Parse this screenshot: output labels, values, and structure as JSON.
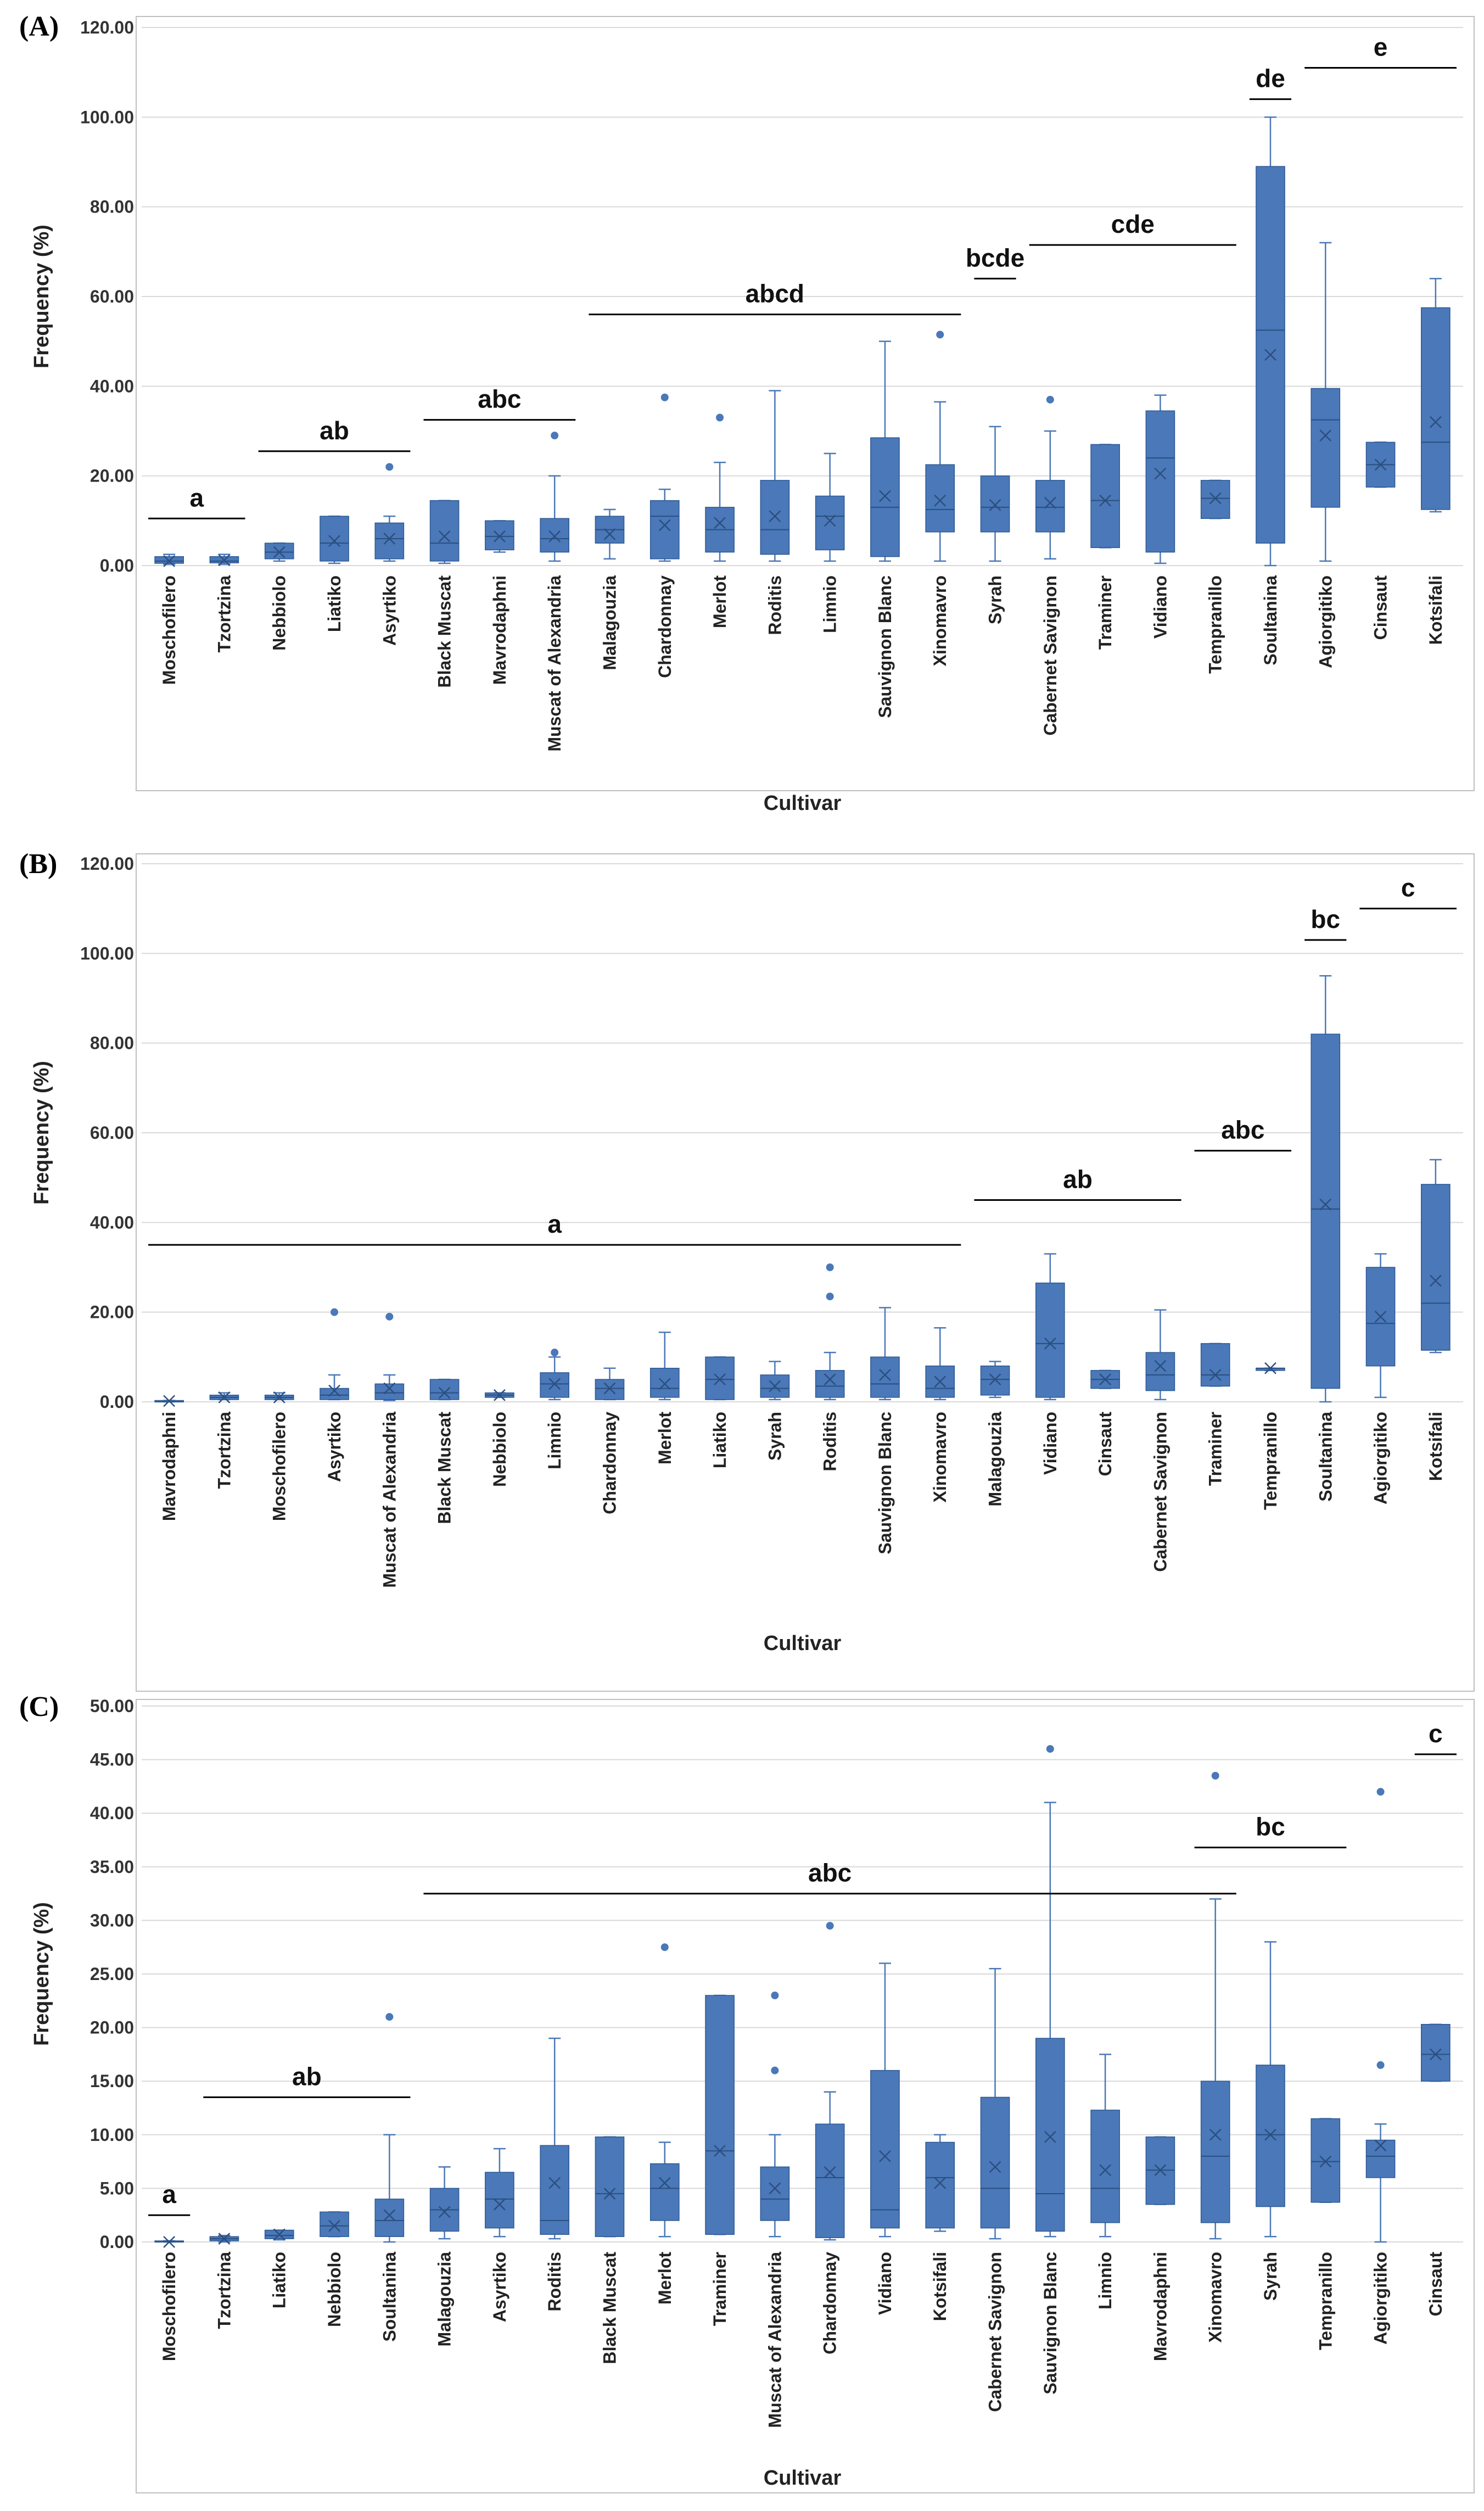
{
  "figure": {
    "colors": {
      "box_fill": "#4A78B8",
      "box_stroke": "#2E5A94",
      "grid": "#D9D9D9",
      "frame": "#BFBFBF",
      "line": "#000000"
    }
  },
  "chart_data": [
    {
      "panel": "(A)",
      "type": "box",
      "xlabel": "Cultivar",
      "ylabel": "Frequency (%)",
      "ylim": [
        0,
        120
      ],
      "yticks": [
        "0.00",
        "20.00",
        "40.00",
        "60.00",
        "80.00",
        "100.00",
        "120.00"
      ],
      "categories": [
        "Moschofilero",
        "Tzortzina",
        "Nebbiolo",
        "Liatiko",
        "Asyrtiko",
        "Black Muscat",
        "Mavrodaphni",
        "Muscat of Alexandria",
        "Malagouzia",
        "Chardonnay",
        "Merlot",
        "Roditis",
        "Limnio",
        "Sauvignon Blanc",
        "Xinomavro",
        "Syrah",
        "Cabernet Savignon",
        "Traminer",
        "Vidiano",
        "Tempranillo",
        "Soultanina",
        "Agiorgitiko",
        "Cinsaut",
        "Kotsifali"
      ],
      "boxes": [
        {
          "min": 0.3,
          "q1": 0.5,
          "median": 1,
          "q3": 2,
          "max": 2.5,
          "mean": 1,
          "outliers": []
        },
        {
          "min": 0.3,
          "q1": 0.6,
          "median": 1,
          "q3": 2,
          "max": 2.5,
          "mean": 1.2,
          "outliers": []
        },
        {
          "min": 1,
          "q1": 1.5,
          "median": 3,
          "q3": 5,
          "max": 5,
          "mean": 3,
          "outliers": []
        },
        {
          "min": 0.5,
          "q1": 1,
          "median": 5,
          "q3": 11,
          "max": 11,
          "mean": 5.5,
          "outliers": []
        },
        {
          "min": 1,
          "q1": 1.5,
          "median": 6,
          "q3": 9.5,
          "max": 11,
          "mean": 6,
          "outliers": [
            22
          ]
        },
        {
          "min": 0.5,
          "q1": 1,
          "median": 5,
          "q3": 14.5,
          "max": 14.5,
          "mean": 6.5,
          "outliers": []
        },
        {
          "min": 3,
          "q1": 3.5,
          "median": 6.5,
          "q3": 10,
          "max": 10,
          "mean": 6.5,
          "outliers": []
        },
        {
          "min": 1,
          "q1": 3,
          "median": 6,
          "q3": 10.5,
          "max": 20,
          "mean": 6.5,
          "outliers": [
            29
          ]
        },
        {
          "min": 1.5,
          "q1": 5,
          "median": 8,
          "q3": 11,
          "max": 12.5,
          "mean": 7,
          "outliers": []
        },
        {
          "min": 1,
          "q1": 1.5,
          "median": 11,
          "q3": 14.5,
          "max": 17,
          "mean": 9,
          "outliers": [
            37.5
          ]
        },
        {
          "min": 1,
          "q1": 3,
          "median": 8,
          "q3": 13,
          "max": 23,
          "mean": 9.5,
          "outliers": [
            33
          ]
        },
        {
          "min": 1,
          "q1": 2.5,
          "median": 8,
          "q3": 19,
          "max": 39,
          "mean": 11,
          "outliers": []
        },
        {
          "min": 1,
          "q1": 3.5,
          "median": 11,
          "q3": 15.5,
          "max": 25,
          "mean": 10,
          "outliers": []
        },
        {
          "min": 1,
          "q1": 2,
          "median": 13,
          "q3": 28.5,
          "max": 50,
          "mean": 15.5,
          "outliers": []
        },
        {
          "min": 1,
          "q1": 7.5,
          "median": 12.5,
          "q3": 22.5,
          "max": 36.5,
          "mean": 14.5,
          "outliers": [
            51.5
          ]
        },
        {
          "min": 1,
          "q1": 7.5,
          "median": 13,
          "q3": 20,
          "max": 31,
          "mean": 13.5,
          "outliers": []
        },
        {
          "min": 1.5,
          "q1": 7.5,
          "median": 13,
          "q3": 19,
          "max": 30,
          "mean": 14,
          "outliers": [
            37
          ]
        },
        {
          "min": 4,
          "q1": 4,
          "median": 14.5,
          "q3": 27,
          "max": 27,
          "mean": 14.5,
          "outliers": []
        },
        {
          "min": 0.5,
          "q1": 3,
          "median": 24,
          "q3": 34.5,
          "max": 38,
          "mean": 20.5,
          "outliers": []
        },
        {
          "min": 10.5,
          "q1": 10.5,
          "median": 15,
          "q3": 19,
          "max": 19,
          "mean": 15,
          "outliers": []
        },
        {
          "min": 0,
          "q1": 5,
          "median": 52.5,
          "q3": 89,
          "max": 100,
          "mean": 47,
          "outliers": []
        },
        {
          "min": 1,
          "q1": 13,
          "median": 32.5,
          "q3": 39.5,
          "max": 72,
          "mean": 29,
          "outliers": []
        },
        {
          "min": 17.5,
          "q1": 17.5,
          "median": 22.5,
          "q3": 27.5,
          "max": 27.5,
          "mean": 22.5,
          "outliers": []
        },
        {
          "min": 12,
          "q1": 12.5,
          "median": 27.5,
          "q3": 57.5,
          "max": 64,
          "mean": 32,
          "outliers": []
        }
      ],
      "sig_groups": [
        {
          "label": "a",
          "from": 0,
          "to": 1,
          "y": 10.5
        },
        {
          "label": "ab",
          "from": 2,
          "to": 4,
          "y": 25.5
        },
        {
          "label": "abc",
          "from": 5,
          "to": 7,
          "y": 32.5
        },
        {
          "label": "abcd",
          "from": 8,
          "to": 14,
          "y": 56
        },
        {
          "label": "bcde",
          "from": 15,
          "to": 15,
          "y": 64
        },
        {
          "label": "cde",
          "from": 16,
          "to": 19,
          "y": 71.5
        },
        {
          "label": "de",
          "from": 20,
          "to": 20,
          "y": 104
        },
        {
          "label": "e",
          "from": 21,
          "to": 23,
          "y": 111
        }
      ]
    },
    {
      "panel": "(B)",
      "type": "box",
      "xlabel": "Cultivar",
      "ylabel": "Frequency (%)",
      "ylim": [
        0,
        120
      ],
      "yticks": [
        "0.00",
        "20.00",
        "40.00",
        "60.00",
        "80.00",
        "100.00",
        "120.00"
      ],
      "categories": [
        "Mavrodaphni",
        "Tzortzina",
        "Moschofilero",
        "Asyrtiko",
        "Muscat of Alexandria",
        "Black Muscat",
        "Nebbiolo",
        "Limnio",
        "Chardonnay",
        "Merlot",
        "Liatiko",
        "Syrah",
        "Roditis",
        "Sauvignon Blanc",
        "Xinomavro",
        "Malagouzia",
        "Vidiano",
        "Cinsaut",
        "Cabernet Savignon",
        "Traminer",
        "Tempranillo",
        "Soultanina",
        "Agiorgitiko",
        "Kotsifali"
      ],
      "boxes": [
        {
          "min": 0,
          "q1": 0,
          "median": 0,
          "q3": 0.3,
          "max": 0.3,
          "mean": 0.2,
          "outliers": []
        },
        {
          "min": 0.5,
          "q1": 0.5,
          "median": 1,
          "q3": 1.5,
          "max": 2,
          "mean": 1,
          "outliers": []
        },
        {
          "min": 0.5,
          "q1": 0.5,
          "median": 1,
          "q3": 1.5,
          "max": 2,
          "mean": 1,
          "outliers": []
        },
        {
          "min": 0.5,
          "q1": 0.5,
          "median": 1.5,
          "q3": 3,
          "max": 6,
          "mean": 2.5,
          "outliers": [
            20
          ]
        },
        {
          "min": 0.3,
          "q1": 0.5,
          "median": 2,
          "q3": 4,
          "max": 6,
          "mean": 3,
          "outliers": [
            19
          ]
        },
        {
          "min": 0.5,
          "q1": 0.5,
          "median": 2,
          "q3": 5,
          "max": 5,
          "mean": 2,
          "outliers": []
        },
        {
          "min": 1,
          "q1": 1,
          "median": 1.5,
          "q3": 2,
          "max": 2,
          "mean": 1.5,
          "outliers": []
        },
        {
          "min": 0.5,
          "q1": 1,
          "median": 4,
          "q3": 6.5,
          "max": 10,
          "mean": 4,
          "outliers": [
            11
          ]
        },
        {
          "min": 0.5,
          "q1": 0.5,
          "median": 3,
          "q3": 5,
          "max": 7.5,
          "mean": 3,
          "outliers": []
        },
        {
          "min": 0.5,
          "q1": 1,
          "median": 3,
          "q3": 7.5,
          "max": 15.5,
          "mean": 4,
          "outliers": []
        },
        {
          "min": 0.5,
          "q1": 0.5,
          "median": 5,
          "q3": 10,
          "max": 10,
          "mean": 5,
          "outliers": []
        },
        {
          "min": 0.5,
          "q1": 1,
          "median": 3,
          "q3": 6,
          "max": 9,
          "mean": 3.5,
          "outliers": []
        },
        {
          "min": 0.5,
          "q1": 1,
          "median": 3.5,
          "q3": 7,
          "max": 11,
          "mean": 5,
          "outliers": [
            23.5,
            30
          ]
        },
        {
          "min": 0.5,
          "q1": 1,
          "median": 4,
          "q3": 10,
          "max": 21,
          "mean": 6,
          "outliers": []
        },
        {
          "min": 0.5,
          "q1": 1,
          "median": 3,
          "q3": 8,
          "max": 16.5,
          "mean": 4.5,
          "outliers": []
        },
        {
          "min": 1,
          "q1": 1.5,
          "median": 5,
          "q3": 8,
          "max": 9,
          "mean": 5,
          "outliers": []
        },
        {
          "min": 0.5,
          "q1": 1,
          "median": 13,
          "q3": 26.5,
          "max": 33,
          "mean": 13,
          "outliers": []
        },
        {
          "min": 3,
          "q1": 3,
          "median": 5,
          "q3": 7,
          "max": 7,
          "mean": 5,
          "outliers": []
        },
        {
          "min": 0.5,
          "q1": 2.5,
          "median": 6,
          "q3": 11,
          "max": 20.5,
          "mean": 8,
          "outliers": []
        },
        {
          "min": 3.5,
          "q1": 3.5,
          "median": 6,
          "q3": 13,
          "max": 13,
          "mean": 6,
          "outliers": []
        },
        {
          "min": 7,
          "q1": 7,
          "median": 7.5,
          "q3": 7.5,
          "max": 7.5,
          "mean": 7.5,
          "outliers": []
        },
        {
          "min": 0,
          "q1": 3,
          "median": 43,
          "q3": 82,
          "max": 95,
          "mean": 44,
          "outliers": []
        },
        {
          "min": 1,
          "q1": 8,
          "median": 17.5,
          "q3": 30,
          "max": 33,
          "mean": 19,
          "outliers": []
        },
        {
          "min": 11,
          "q1": 11.5,
          "median": 22,
          "q3": 48.5,
          "max": 54,
          "mean": 27,
          "outliers": []
        }
      ],
      "sig_groups": [
        {
          "label": "a",
          "from": 0,
          "to": 14,
          "y": 35
        },
        {
          "label": "ab",
          "from": 15,
          "to": 18,
          "y": 45
        },
        {
          "label": "abc",
          "from": 19,
          "to": 20,
          "y": 56
        },
        {
          "label": "bc",
          "from": 21,
          "to": 21,
          "y": 103
        },
        {
          "label": "c",
          "from": 22,
          "to": 23,
          "y": 110
        }
      ]
    },
    {
      "panel": "(C)",
      "type": "box",
      "xlabel": "Cultivar",
      "ylabel": "Frequency (%)",
      "ylim": [
        0,
        50
      ],
      "yticks": [
        "0.00",
        "5.00",
        "10.00",
        "15.00",
        "20.00",
        "25.00",
        "30.00",
        "35.00",
        "40.00",
        "45.00",
        "50.00"
      ],
      "categories": [
        "Moschofilero",
        "Tzortzina",
        "Liatiko",
        "Nebbiolo",
        "Soultanina",
        "Malagouzia",
        "Asyrtiko",
        "Roditis",
        "Black Muscat",
        "Merlot",
        "Traminer",
        "Muscat of Alexandria",
        "Chardonnay",
        "Vidiano",
        "Kotsifali",
        "Cabernet Savignon",
        "Sauvignon Blanc",
        "Limnio",
        "Mavrodaphni",
        "Xinomavro",
        "Syrah",
        "Tempranillo",
        "Agiorgitiko",
        "Cinsaut"
      ],
      "boxes": [
        {
          "min": 0,
          "q1": 0,
          "median": 0,
          "q3": 0.1,
          "max": 0.1,
          "mean": 0,
          "outliers": []
        },
        {
          "min": 0,
          "q1": 0.1,
          "median": 0.3,
          "q3": 0.5,
          "max": 0.6,
          "mean": 0.3,
          "outliers": []
        },
        {
          "min": 0.2,
          "q1": 0.3,
          "median": 0.6,
          "q3": 1.1,
          "max": 1.1,
          "mean": 0.7,
          "outliers": []
        },
        {
          "min": 0.5,
          "q1": 0.5,
          "median": 1.5,
          "q3": 2.8,
          "max": 2.8,
          "mean": 1.5,
          "outliers": []
        },
        {
          "min": 0,
          "q1": 0.5,
          "median": 2,
          "q3": 4,
          "max": 10,
          "mean": 2.5,
          "outliers": [
            21
          ]
        },
        {
          "min": 0.3,
          "q1": 1,
          "median": 3,
          "q3": 5,
          "max": 7,
          "mean": 2.8,
          "outliers": []
        },
        {
          "min": 0.5,
          "q1": 1.3,
          "median": 4,
          "q3": 6.5,
          "max": 8.7,
          "mean": 3.5,
          "outliers": []
        },
        {
          "min": 0.3,
          "q1": 0.7,
          "median": 2,
          "q3": 9,
          "max": 19,
          "mean": 5.5,
          "outliers": []
        },
        {
          "min": 0.5,
          "q1": 0.5,
          "median": 4.5,
          "q3": 9.8,
          "max": 9.8,
          "mean": 4.5,
          "outliers": []
        },
        {
          "min": 0.5,
          "q1": 2,
          "median": 5,
          "q3": 7.3,
          "max": 9.3,
          "mean": 5.5,
          "outliers": [
            27.5
          ]
        },
        {
          "min": 0.7,
          "q1": 0.7,
          "median": 8.5,
          "q3": 23,
          "max": 23,
          "mean": 8.5,
          "outliers": []
        },
        {
          "min": 0.5,
          "q1": 2,
          "median": 4,
          "q3": 7,
          "max": 10,
          "mean": 5,
          "outliers": [
            16,
            23
          ]
        },
        {
          "min": 0.2,
          "q1": 0.4,
          "median": 6,
          "q3": 11,
          "max": 14,
          "mean": 6.5,
          "outliers": [
            29.5
          ]
        },
        {
          "min": 0.5,
          "q1": 1.3,
          "median": 3,
          "q3": 16,
          "max": 26,
          "mean": 8,
          "outliers": []
        },
        {
          "min": 1,
          "q1": 1.3,
          "median": 6,
          "q3": 9.3,
          "max": 10,
          "mean": 5.5,
          "outliers": []
        },
        {
          "min": 0.3,
          "q1": 1.3,
          "median": 5,
          "q3": 13.5,
          "max": 25.5,
          "mean": 7,
          "outliers": []
        },
        {
          "min": 0.5,
          "q1": 1,
          "median": 4.5,
          "q3": 19,
          "max": 41,
          "mean": 9.8,
          "outliers": [
            46
          ]
        },
        {
          "min": 0.5,
          "q1": 1.8,
          "median": 5,
          "q3": 12.3,
          "max": 17.5,
          "mean": 6.7,
          "outliers": []
        },
        {
          "min": 3.5,
          "q1": 3.5,
          "median": 6.7,
          "q3": 9.8,
          "max": 9.8,
          "mean": 6.7,
          "outliers": []
        },
        {
          "min": 0.3,
          "q1": 1.8,
          "median": 8,
          "q3": 15,
          "max": 32,
          "mean": 10,
          "outliers": [
            43.5
          ]
        },
        {
          "min": 0.5,
          "q1": 3.3,
          "median": 10,
          "q3": 16.5,
          "max": 28,
          "mean": 10,
          "outliers": []
        },
        {
          "min": 3.7,
          "q1": 3.7,
          "median": 7.5,
          "q3": 11.5,
          "max": 11.5,
          "mean": 7.5,
          "outliers": []
        },
        {
          "min": 0,
          "q1": 6,
          "median": 8,
          "q3": 9.5,
          "max": 11,
          "mean": 9,
          "outliers": [
            16.5,
            42
          ]
        },
        {
          "min": 15,
          "q1": 15,
          "median": 17.5,
          "q3": 20.3,
          "max": 20.3,
          "mean": 17.5,
          "outliers": []
        }
      ],
      "sig_groups": [
        {
          "label": "a",
          "from": 0,
          "to": 0,
          "y": 2.5
        },
        {
          "label": "ab",
          "from": 1,
          "to": 4,
          "y": 13.5
        },
        {
          "label": "abc",
          "from": 5,
          "to": 19,
          "y": 32.5
        },
        {
          "label": "bc",
          "from": 19,
          "to": 21,
          "y": 36.8
        },
        {
          "label": "c",
          "from": 23,
          "to": 23,
          "y": 45.5
        }
      ]
    }
  ]
}
